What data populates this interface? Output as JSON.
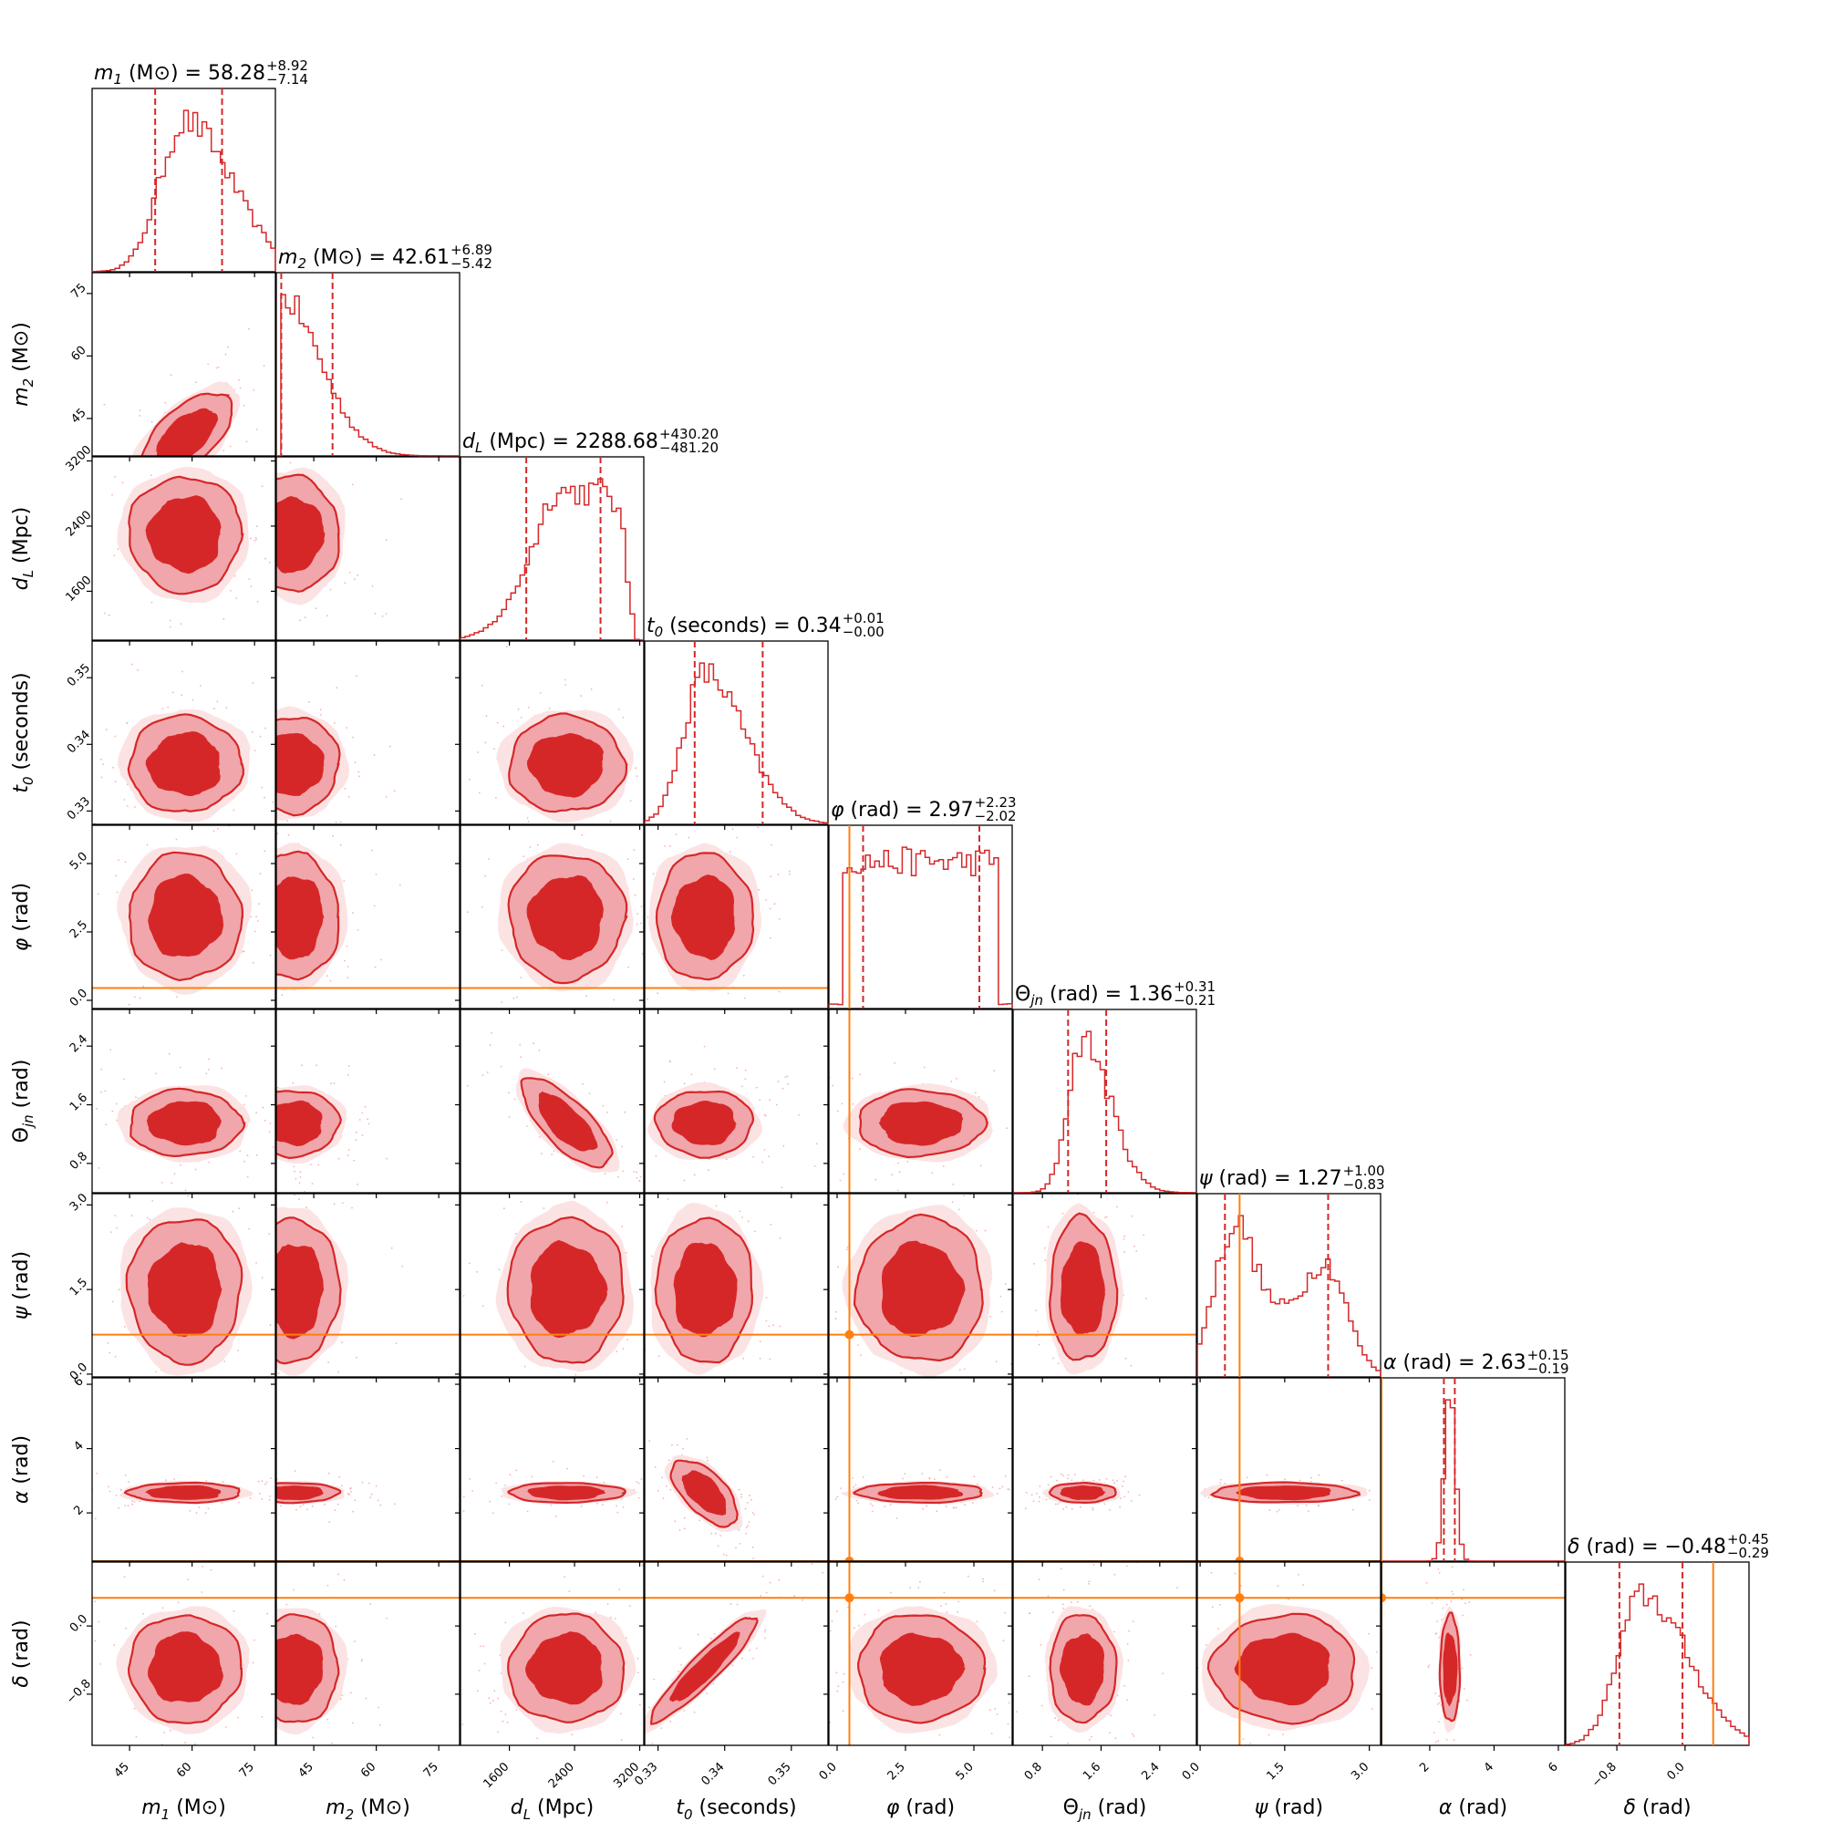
{
  "chart_data": {
    "type": "corner",
    "colors": {
      "posterior": "#d62728",
      "contour_outer": "#f0a6aa",
      "truth": "#ff7f0e"
    },
    "params": [
      {
        "key": "m1",
        "sym": "m",
        "sub": "1",
        "unit": "(M⊙)",
        "median": "58.28",
        "plus": "+8.92",
        "minus": "−7.14",
        "range": [
          36,
          80
        ],
        "ticks": [
          45,
          60,
          75
        ],
        "ticklabels": [
          "45",
          "60",
          "75"
        ],
        "mean": 58.3,
        "sd": 7.5,
        "q": [
          51.14,
          67.2
        ],
        "shape": "skewright",
        "truth": null
      },
      {
        "key": "m2",
        "sym": "m",
        "sub": "2",
        "unit": "(M⊙)",
        "median": "42.61",
        "plus": "+6.89",
        "minus": "−5.42",
        "range": [
          36,
          80
        ],
        "ticks": [
          45,
          60,
          75
        ],
        "ticklabels": [
          "45",
          "60",
          "75"
        ],
        "mean": 43,
        "sd": 6,
        "q": [
          37.19,
          49.5
        ],
        "shape": "halfleft",
        "truth": null
      },
      {
        "key": "dL",
        "sym": "d",
        "sub": "L",
        "unit": "(Mpc)",
        "median": "2288.68",
        "plus": "+430.20",
        "minus": "−481.20",
        "range": [
          1000,
          3250
        ],
        "ticks": [
          1600,
          2400,
          3200
        ],
        "ticklabels": [
          "1600",
          "2400",
          "3200"
        ],
        "mean": 2300,
        "sd": 450,
        "q": [
          1807.48,
          2718.88
        ],
        "shape": "flatright",
        "truth": null
      },
      {
        "key": "t0",
        "sym": "t",
        "sub": "0",
        "unit": "(seconds)",
        "median": "0.34",
        "plus": "+0.01",
        "minus": "−0.00",
        "range": [
          0.328,
          0.3555
        ],
        "ticks": [
          0.33,
          0.34,
          0.35
        ],
        "ticklabels": [
          "0.33",
          "0.34",
          "0.35"
        ],
        "mean": 0.337,
        "sd": 0.004,
        "q": [
          0.3355,
          0.3457
        ],
        "shape": "skewright",
        "truth": null
      },
      {
        "key": "phi",
        "sym": "φ",
        "sub": "",
        "unit": "(rad)",
        "median": "2.97",
        "plus": "+2.23",
        "minus": "−2.02",
        "range": [
          -0.3,
          6.4
        ],
        "ticks": [
          0,
          2.5,
          5
        ],
        "ticklabels": [
          "0.0",
          "2.5",
          "5.0"
        ],
        "mean": 3.1,
        "sd": 1.8,
        "q": [
          0.95,
          5.2
        ],
        "shape": "uniform",
        "truth": 0.45
      },
      {
        "key": "theta",
        "sym": "Θ",
        "sub": "jn",
        "unit": "(rad)",
        "median": "1.36",
        "plus": "+0.31",
        "minus": "−0.21",
        "range": [
          0.4,
          2.9
        ],
        "ticks": [
          0.8,
          1.6,
          2.4
        ],
        "ticklabels": [
          "0.8",
          "1.6",
          "2.4"
        ],
        "mean": 1.35,
        "sd": 0.25,
        "q": [
          1.15,
          1.67
        ],
        "shape": "skewright",
        "truth": null
      },
      {
        "key": "psi",
        "sym": "ψ",
        "sub": "",
        "unit": "(rad)",
        "median": "1.27",
        "plus": "+1.00",
        "minus": "−0.83",
        "range": [
          -0.05,
          3.2
        ],
        "ticks": [
          0,
          1.5,
          3
        ],
        "ticklabels": [
          "0.0",
          "1.5",
          "3.0"
        ],
        "mean": 1.5,
        "sd": 0.9,
        "q": [
          0.44,
          2.27
        ],
        "shape": "bimodal",
        "truth": 0.7
      },
      {
        "key": "alpha",
        "sym": "α",
        "sub": "",
        "unit": "(rad)",
        "median": "2.63",
        "plus": "+0.15",
        "minus": "−0.19",
        "range": [
          0.5,
          6.2
        ],
        "ticks": [
          2,
          4,
          6
        ],
        "ticklabels": [
          "2",
          "4",
          "6"
        ],
        "mean": 2.63,
        "sd": 0.17,
        "q": [
          2.44,
          2.78
        ],
        "shape": "normal",
        "truth": 0.5
      },
      {
        "key": "delta",
        "sym": "δ",
        "sub": "",
        "unit": "(rad)",
        "median": "−0.48",
        "plus": "+0.45",
        "minus": "−0.29",
        "range": [
          -1.4,
          0.75
        ],
        "ticks": [
          -0.8,
          0
        ],
        "ticklabels": [
          "−0.8",
          "0.0"
        ],
        "mean": -0.5,
        "sd": 0.35,
        "q": [
          -0.77,
          -0.03
        ],
        "shape": "skewright",
        "truth": 0.33
      }
    ]
  }
}
